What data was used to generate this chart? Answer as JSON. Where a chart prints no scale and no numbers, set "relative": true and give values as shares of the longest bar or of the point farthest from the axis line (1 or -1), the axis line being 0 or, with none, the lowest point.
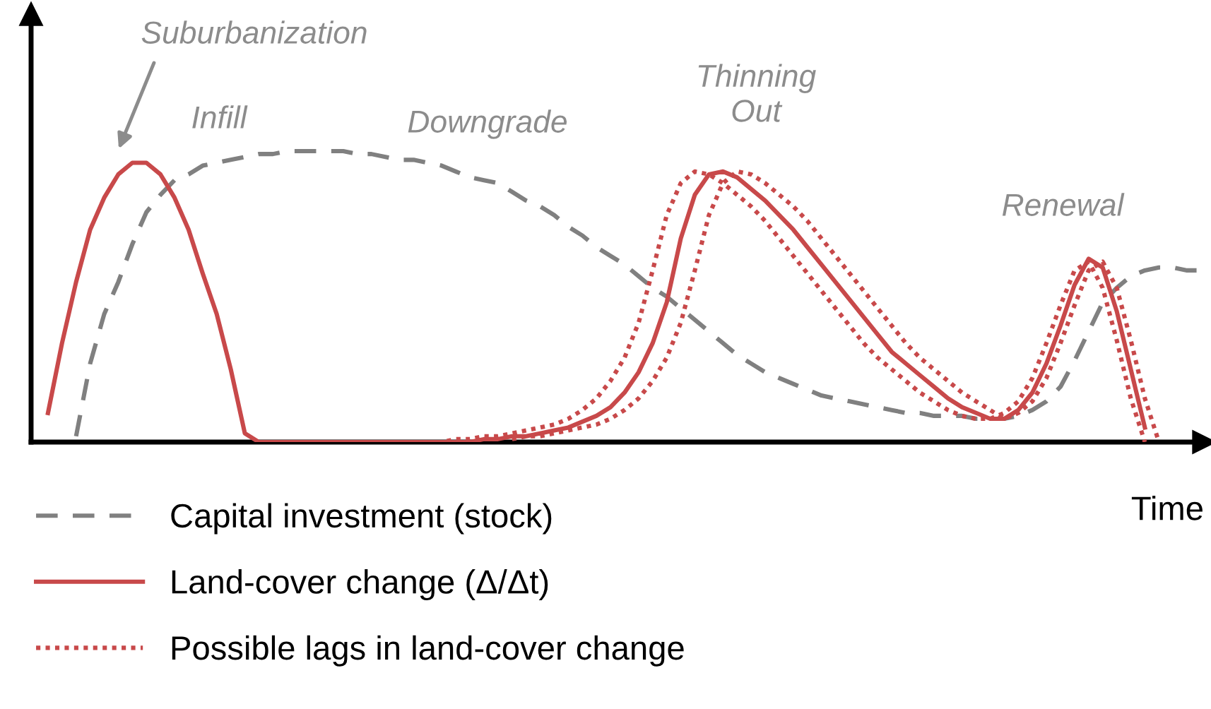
{
  "chart_data": {
    "type": "line",
    "relative": true,
    "xlabel": "Time",
    "legend": "bottom",
    "grid": false,
    "marker": "none",
    "categories": [
      null,
      null,
      null,
      null,
      null,
      null,
      null,
      null,
      null,
      null,
      null,
      null,
      null,
      null,
      null,
      null,
      null,
      null,
      null,
      null,
      null,
      null,
      null,
      null,
      null,
      null,
      null,
      null,
      null,
      null,
      null,
      null,
      null,
      null,
      null,
      null,
      null,
      null,
      null,
      null,
      null,
      null,
      null,
      null,
      null,
      null,
      null,
      null,
      null,
      null,
      null,
      null,
      null,
      null,
      null,
      null,
      null,
      null,
      null,
      null,
      null,
      null,
      null,
      null,
      null,
      null,
      null,
      null,
      null,
      null,
      null,
      null,
      null,
      null,
      null,
      null,
      null,
      null,
      null,
      null,
      null,
      null,
      null,
      null
    ],
    "annotations": [
      "Suburbanization",
      "Infill",
      "Downgrade",
      "Thinning\nOut",
      "Renewal"
    ],
    "series": [
      {
        "name": "Capital investment (stock)",
        "color": "#808080",
        "line_style": "dashed",
        "values": [
          null,
          null,
          null,
          0.02,
          0.27,
          0.44,
          0.55,
          0.68,
          0.79,
          0.85,
          0.9,
          0.92,
          0.95,
          0.96,
          0.97,
          0.98,
          0.99,
          0.99,
          1.0,
          1.0,
          1.0,
          1.0,
          1.0,
          0.99,
          0.99,
          0.98,
          0.97,
          0.97,
          0.96,
          0.95,
          0.93,
          0.91,
          0.9,
          0.89,
          0.86,
          0.83,
          0.81,
          0.78,
          0.74,
          0.71,
          0.67,
          0.64,
          0.61,
          0.57,
          0.53,
          0.5,
          0.46,
          0.42,
          0.38,
          0.34,
          0.3,
          0.27,
          0.24,
          0.22,
          0.2,
          0.18,
          0.16,
          0.15,
          0.14,
          0.13,
          0.12,
          0.11,
          0.1,
          0.1,
          0.09,
          0.09,
          0.09,
          0.08,
          0.08,
          0.08,
          0.09,
          0.11,
          0.14,
          0.19,
          0.28,
          0.38,
          0.48,
          0.53,
          0.57,
          0.59,
          0.6,
          0.6,
          0.59,
          0.59
        ]
      },
      {
        "name": "Land-cover change (Δ/Δt)",
        "color": "#c8494a",
        "line_style": "solid",
        "values": [
          null,
          0.1,
          0.34,
          0.55,
          0.73,
          0.84,
          0.92,
          0.96,
          0.96,
          0.92,
          0.84,
          0.73,
          0.58,
          0.44,
          0.25,
          0.03,
          0,
          0,
          0,
          0,
          0,
          0,
          0,
          0,
          0,
          0,
          0,
          0,
          0,
          0,
          0,
          0,
          0.01,
          0.01,
          0.02,
          0.02,
          0.03,
          0.04,
          0.05,
          0.07,
          0.09,
          0.12,
          0.17,
          0.24,
          0.34,
          0.48,
          0.7,
          0.85,
          0.92,
          0.93,
          0.91,
          0.87,
          0.83,
          0.78,
          0.73,
          0.67,
          0.61,
          0.55,
          0.49,
          0.43,
          0.37,
          0.31,
          0.27,
          0.23,
          0.19,
          0.15,
          0.12,
          0.1,
          0.08,
          0.08,
          0.11,
          0.17,
          0.27,
          0.4,
          0.54,
          0.63,
          0.6,
          0.45,
          0.25,
          0.05,
          null,
          null,
          null,
          null
        ]
      },
      {
        "name": "Possible lags in land-cover change",
        "color": "#c8494a",
        "line_style": "dotted",
        "values": [
          null,
          null,
          null,
          null,
          null,
          null,
          null,
          null,
          null,
          null,
          null,
          null,
          null,
          null,
          null,
          null,
          null,
          null,
          null,
          null,
          null,
          null,
          null,
          null,
          null,
          null,
          0,
          0,
          0,
          0,
          0.01,
          0.01,
          0.02,
          0.02,
          0.03,
          0.04,
          0.05,
          0.06,
          0.08,
          0.11,
          0.15,
          0.21,
          0.29,
          0.41,
          0.59,
          0.78,
          0.89,
          0.93,
          0.92,
          0.89,
          0.85,
          0.81,
          0.76,
          0.7,
          0.64,
          0.58,
          0.52,
          0.46,
          0.4,
          0.34,
          0.29,
          0.25,
          0.21,
          0.17,
          0.14,
          0.11,
          0.09,
          0.08,
          0.08,
          0.1,
          0.14,
          0.22,
          0.34,
          0.47,
          0.59,
          0.62,
          0.53,
          0.35,
          0.15,
          0,
          null,
          null,
          null,
          null
        ]
      },
      {
        "color": "#c8494a",
        "line_style": "dotted",
        "values": [
          null,
          null,
          null,
          null,
          null,
          null,
          null,
          null,
          null,
          null,
          null,
          null,
          null,
          null,
          null,
          null,
          null,
          null,
          null,
          null,
          null,
          null,
          null,
          null,
          null,
          null,
          null,
          null,
          null,
          null,
          null,
          null,
          null,
          null,
          0.01,
          0.02,
          0.02,
          0.03,
          0.04,
          0.05,
          0.06,
          0.08,
          0.11,
          0.15,
          0.21,
          0.29,
          0.41,
          0.59,
          0.78,
          0.89,
          0.93,
          0.92,
          0.89,
          0.85,
          0.81,
          0.76,
          0.7,
          0.64,
          0.58,
          0.52,
          0.46,
          0.4,
          0.34,
          0.29,
          0.25,
          0.21,
          0.17,
          0.14,
          0.11,
          0.08,
          0.1,
          0.14,
          0.22,
          0.34,
          0.47,
          0.59,
          0.62,
          0.53,
          0.35,
          0.15,
          0,
          null,
          null,
          null
        ]
      }
    ]
  }
}
